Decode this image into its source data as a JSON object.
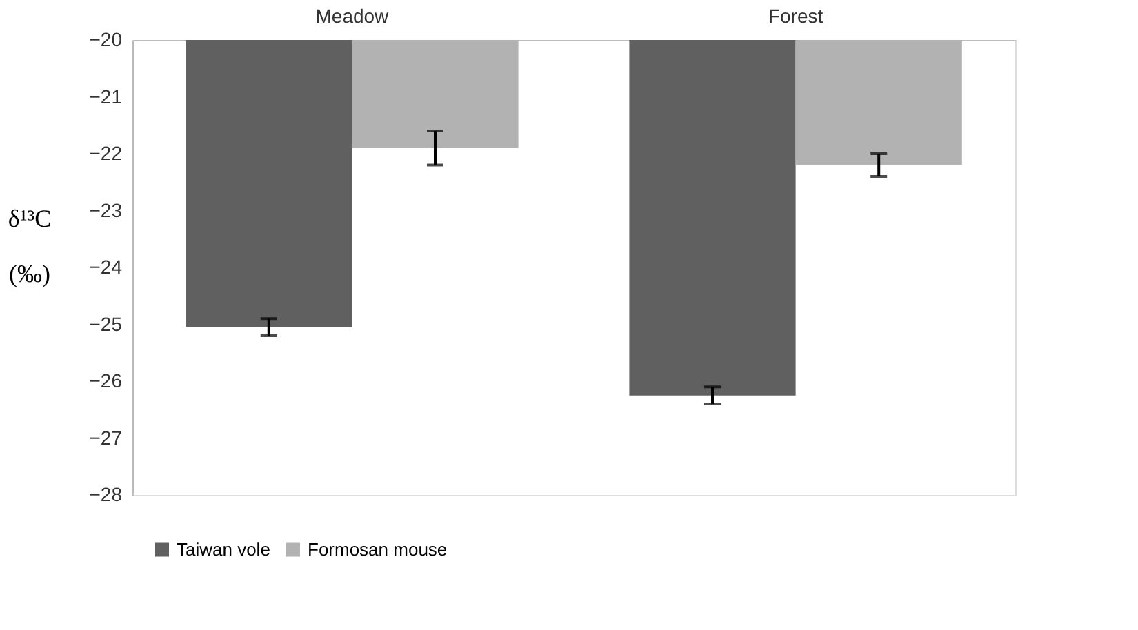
{
  "chart_data": {
    "type": "bar",
    "ylabel": "δ¹³C\n(‰)",
    "categories": [
      "Meadow",
      "Forest"
    ],
    "series": [
      {
        "name": "Taiwan vole",
        "color": "#606060",
        "values": [
          -25.05,
          -26.25
        ],
        "errors": [
          0.15,
          0.15
        ]
      },
      {
        "name": "Formosan mouse",
        "color": "#b2b2b2",
        "values": [
          -21.9,
          -22.2
        ],
        "errors": [
          0.3,
          0.2
        ]
      }
    ],
    "ylim": [
      -28,
      -20
    ],
    "yticks": [
      -28,
      -27,
      -26,
      -25,
      -24,
      -23,
      -22,
      -21,
      -20
    ],
    "grid": false,
    "legend": "bottom"
  }
}
